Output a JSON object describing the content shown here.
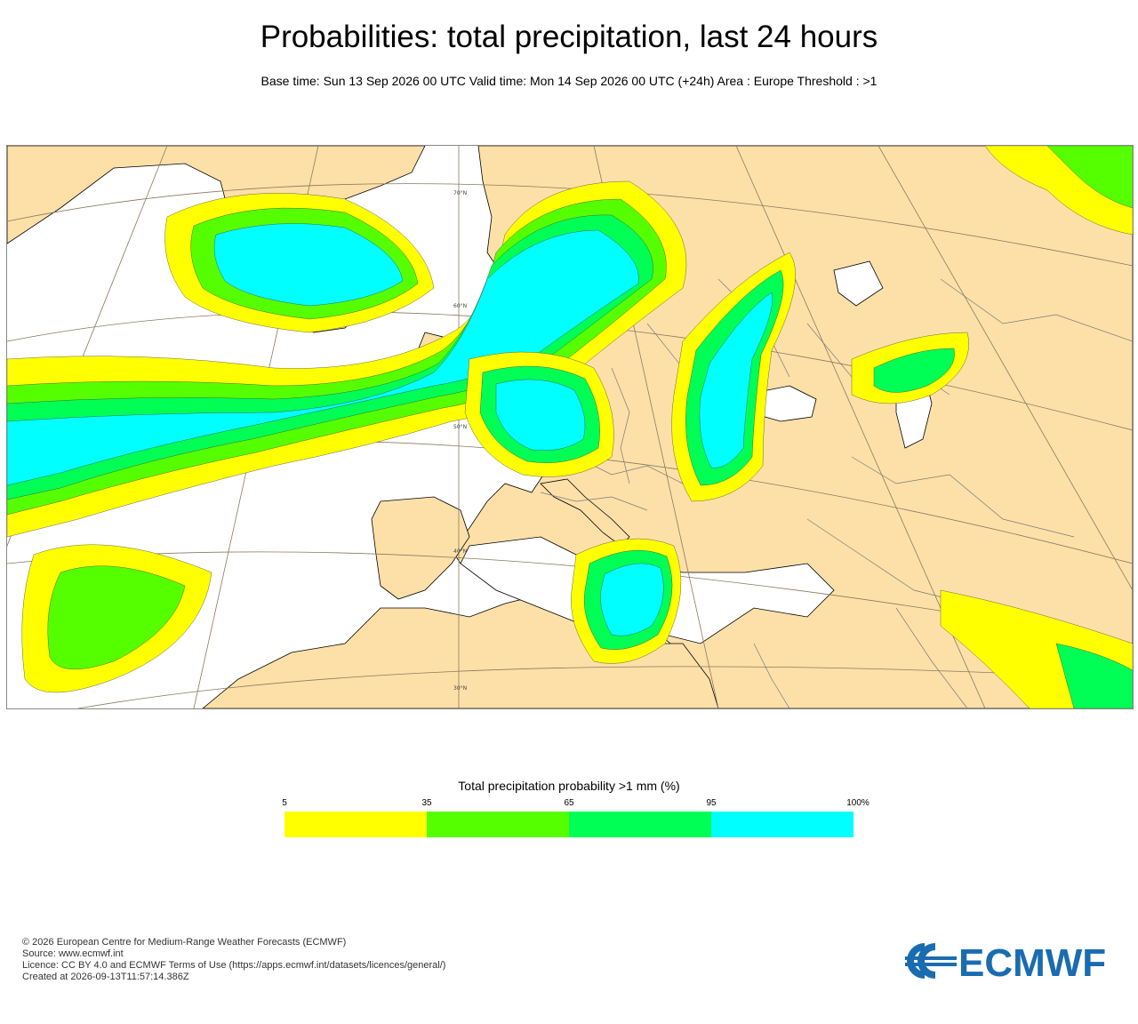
{
  "title": "Probabilities:  total precipitation, last 24 hours",
  "subtitle": "Base time: Sun 13 Sep 2026 00 UTC Valid time: Mon 14 Sep 2026 00 UTC (+24h) Area : Europe Threshold : >1",
  "map": {
    "lat_labels": [
      "70°N",
      "60°N",
      "50°N",
      "40°N",
      "30°N"
    ],
    "colors": {
      "land": "#fce0a8",
      "sea": "#ffffff",
      "border": "#7a7a7a",
      "coast": "#000000"
    }
  },
  "legend": {
    "title": "Total precipitation probability >1 mm (%)",
    "ticks": [
      "5",
      "35",
      "65",
      "95",
      "100%"
    ],
    "bands": [
      {
        "from": 5,
        "to": 35,
        "color": "#ffff00"
      },
      {
        "from": 35,
        "to": 65,
        "color": "#55ff00"
      },
      {
        "from": 65,
        "to": 95,
        "color": "#00ff55"
      },
      {
        "from": 95,
        "to": 100,
        "color": "#00ffff"
      }
    ]
  },
  "footer": {
    "copyright": "© 2026 European Centre for Medium-Range Weather Forecasts (ECMWF)",
    "source": "Source: www.ecmwf.int",
    "licence": "Licence: CC BY 4.0 and ECMWF Terms of Use (https://apps.ecmwf.int/datasets/licences/general/)",
    "created": "Created at 2026-09-13T11:57:14.386Z"
  },
  "logo": {
    "text": "ECMWF",
    "color": "#1a6cb0"
  }
}
